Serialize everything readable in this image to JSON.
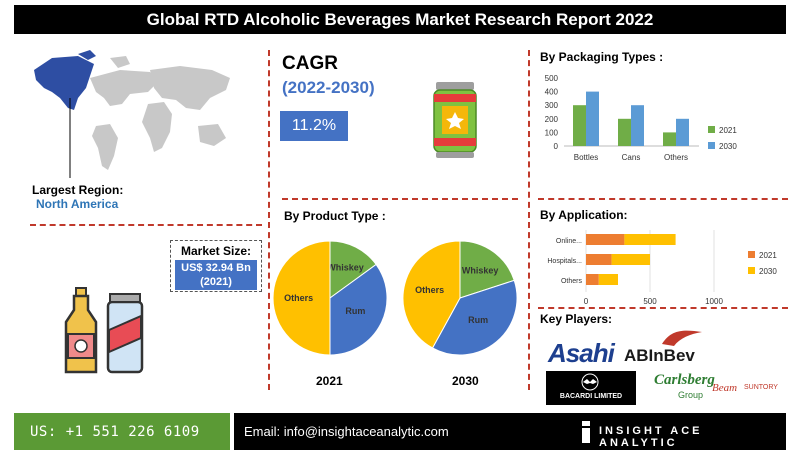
{
  "title": "Global RTD Alcoholic Beverages Market Research Report 2022",
  "region": {
    "label": "Largest Region:",
    "value": "North America"
  },
  "market_size": {
    "label": "Market Size:",
    "value_line1": "US$ 32.94 Bn",
    "value_line2": "(2021)"
  },
  "cagr": {
    "label": "CAGR",
    "period": "(2022-2030)",
    "value": "11.2%"
  },
  "sections": {
    "packaging": "By Packaging Types :",
    "product": "By Product Type :",
    "application": "By Application:",
    "key_players": "Key Players:"
  },
  "key_players": {
    "asahi": "Asahi",
    "abinbev": "ABInBev",
    "bacardi": "BACARDI LIMITED",
    "carlsberg": "Carlsberg",
    "carlsberg_sub": "Group",
    "beam": "Beam",
    "beam_sub": "SUNTORY"
  },
  "footer": {
    "phone": "US: +1 551 226 6109",
    "email": "Email: info@insightaceanalytic.com",
    "brand": "INSIGHT ACE ANALYTIC"
  },
  "colors": {
    "accent_blue": "#4472c4",
    "green": "#70ad47",
    "orange": "#ed7d31",
    "yellow": "#ffc000",
    "light_blue": "#5b9bd5",
    "dash_red": "#c0392b"
  },
  "chart_data": [
    {
      "type": "bar",
      "title": "By Packaging Types :",
      "categories": [
        "Bottles",
        "Cans",
        "Others"
      ],
      "series": [
        {
          "name": "2021",
          "values": [
            300,
            200,
            100
          ],
          "color": "#70ad47"
        },
        {
          "name": "2030",
          "values": [
            400,
            300,
            200
          ],
          "color": "#5b9bd5"
        }
      ],
      "ylim": [
        0,
        500
      ],
      "yticks": [
        0,
        100,
        200,
        300,
        400,
        500
      ],
      "legend": "right"
    },
    {
      "type": "pie",
      "title": "2021",
      "slices": [
        {
          "label": "Whiskey",
          "value": 15,
          "color": "#70ad47"
        },
        {
          "label": "Rum",
          "value": 35,
          "color": "#4472c4"
        },
        {
          "label": "Others",
          "value": 50,
          "color": "#ffc000"
        }
      ]
    },
    {
      "type": "pie",
      "title": "2030",
      "slices": [
        {
          "label": "Whiskey",
          "value": 20,
          "color": "#70ad47"
        },
        {
          "label": "Rum",
          "value": 38,
          "color": "#4472c4"
        },
        {
          "label": "Others",
          "value": 42,
          "color": "#ffc000"
        }
      ]
    },
    {
      "type": "bar",
      "orientation": "horizontal",
      "stacked": true,
      "title": "By Application:",
      "categories": [
        "Online...",
        "Hospitals...",
        "Others"
      ],
      "series": [
        {
          "name": "2021",
          "values": [
            300,
            200,
            100
          ],
          "color": "#ed7d31"
        },
        {
          "name": "2030",
          "values": [
            400,
            300,
            150
          ],
          "color": "#ffc000"
        }
      ],
      "xlim": [
        0,
        1000
      ],
      "xticks": [
        0,
        500,
        1000
      ],
      "legend": "right"
    }
  ]
}
